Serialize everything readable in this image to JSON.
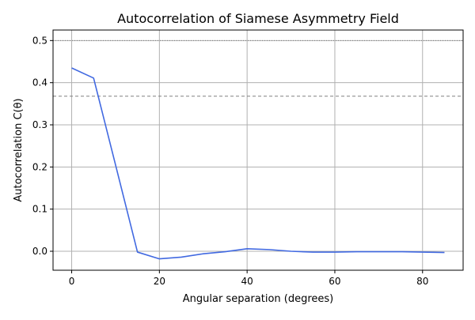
{
  "chart_data": {
    "type": "line",
    "title": "Autocorrelation of Siamese Asymmetry Field",
    "xlabel": "Angular separation (degrees)",
    "ylabel": "Autocorrelation C(θ)",
    "xlim": [
      -4.25,
      89.25
    ],
    "ylim": [
      -0.045,
      0.525
    ],
    "xticks": [
      0,
      20,
      40,
      60,
      80
    ],
    "yticks": [
      0.0,
      0.1,
      0.2,
      0.3,
      0.4,
      0.5
    ],
    "xtick_labels": [
      "0",
      "20",
      "40",
      "60",
      "80"
    ],
    "ytick_labels": [
      "0.0",
      "0.1",
      "0.2",
      "0.3",
      "0.4",
      "0.5"
    ],
    "grid": true,
    "series": [
      {
        "color": "#4169e1",
        "x": [
          0,
          5,
          10,
          15,
          20,
          25,
          30,
          35,
          40,
          45,
          50,
          55,
          60,
          65,
          70,
          75,
          80,
          85
        ],
        "y": [
          0.435,
          0.411,
          0.205,
          -0.002,
          -0.018,
          -0.014,
          -0.006,
          -0.001,
          0.006,
          0.004,
          0.0,
          -0.002,
          -0.002,
          -0.001,
          -0.001,
          -0.001,
          -0.002,
          -0.003
        ]
      }
    ],
    "reference_lines": [
      {
        "y": 0.5,
        "style": "dotted",
        "color": "#808080"
      },
      {
        "y": 0.368,
        "style": "dashed",
        "color": "#808080"
      }
    ]
  }
}
